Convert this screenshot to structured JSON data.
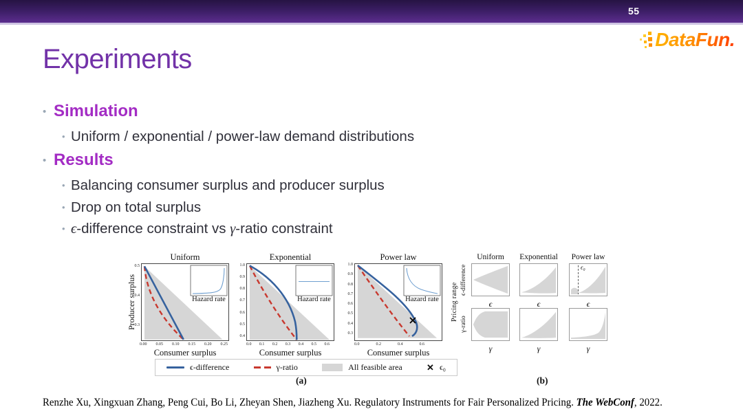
{
  "slide": {
    "page_number": "55",
    "title": "Experiments",
    "logo": {
      "text": "DataFun."
    },
    "citation": {
      "pre": "Renzhe Xu, Xingxuan Zhang, Peng Cui, Bo Li, Zheyan Shen, Jiazheng Xu. Regulatory Instruments for Fair Personalized Pricing. ",
      "emph": "The WebConf",
      "post": ", 2022."
    },
    "colors": {
      "bar_purple": "#3a1d63",
      "title_purple": "#7232a8",
      "header_purple": "#a32cc4",
      "line_blue": "#36629e",
      "line_red": "#c8392f",
      "feasible_gray": "#d6d6d6"
    }
  },
  "bullets": {
    "simulation": {
      "label": "Simulation",
      "sub": "Uniform / exponential / power-law demand distributions"
    },
    "results": {
      "label": "Results",
      "sub1": "Balancing consumer surplus and producer surplus",
      "sub2": "Drop on total surplus",
      "sub3": {
        "eps": "ϵ",
        "mid": "-difference constraint vs ",
        "gamma": "γ",
        "end": "-ratio constraint"
      }
    }
  },
  "figure": {
    "caption_a": "(a)",
    "caption_b": "(b)",
    "ylabel_a": "Producer surplus",
    "xlabel_a": "Consumer surplus",
    "inset_label": "Hazard rate",
    "panels_a": [
      {
        "title": "Uniform",
        "x_ticks": [
          "0.00",
          "0.05",
          "0.10",
          "0.15",
          "0.20",
          "0.25"
        ],
        "y_ticks": [
          "0.5",
          "0.4",
          "0.3"
        ]
      },
      {
        "title": "Exponential",
        "x_ticks": [
          "0.0",
          "0.1",
          "0.2",
          "0.3",
          "0.4",
          "0.5",
          "0.6"
        ],
        "y_ticks": [
          "1.0",
          "0.9",
          "0.8",
          "0.7",
          "0.6",
          "0.5",
          "0.4"
        ]
      },
      {
        "title": "Power law",
        "x_ticks": [
          "0.0",
          "0.2",
          "0.4",
          "0.6"
        ],
        "y_ticks": [
          "1.0",
          "0.9",
          "0.8",
          "0.7",
          "0.6",
          "0.5",
          "0.4",
          "0.3"
        ]
      }
    ],
    "legend": {
      "eps_diff": "ϵ-difference",
      "gamma_ratio": "γ-ratio",
      "feasible": "All feasible area",
      "eps0": "ϵ₀"
    },
    "panels_b": {
      "outer_row_label": "Pricing range",
      "row1_label": "ϵ-difference",
      "row2_label": "γ-ratio",
      "col_titles": [
        "Uniform",
        "Exponential",
        "Power law"
      ],
      "x_label_row1": "ϵ",
      "x_label_row2": "γ",
      "eps0": "ϵ₀"
    }
  },
  "chart_data": [
    {
      "type": "line",
      "title": "Uniform",
      "xlabel": "Consumer surplus",
      "ylabel": "Producer surplus",
      "xlim": [
        0,
        0.26
      ],
      "ylim": [
        0.24,
        0.51
      ],
      "x_ticks": [
        0.0,
        0.05,
        0.1,
        0.15,
        0.2,
        0.25
      ],
      "y_ticks": [
        0.3,
        0.4,
        0.5
      ],
      "feasible_area_polygon": [
        [
          0,
          0.5
        ],
        [
          0,
          0.25
        ],
        [
          0.25,
          0.25
        ]
      ],
      "series": [
        {
          "name": "ϵ-difference",
          "style": "solid",
          "color": "#36629e",
          "points": [
            [
              0,
              0.5
            ],
            [
              0.06,
              0.38
            ],
            [
              0.125,
              0.25
            ]
          ]
        },
        {
          "name": "γ-ratio",
          "style": "dashed",
          "color": "#c8392f",
          "points": [
            [
              0,
              0.5
            ],
            [
              0.03,
              0.4
            ],
            [
              0.07,
              0.32
            ],
            [
              0.125,
              0.25
            ]
          ]
        }
      ],
      "inset": {
        "label": "Hazard rate",
        "shape": "near-constant then sharply increasing at right"
      }
    },
    {
      "type": "line",
      "title": "Exponential",
      "xlabel": "Consumer surplus",
      "ylabel": "Producer surplus",
      "xlim": [
        0,
        0.65
      ],
      "ylim": [
        0.36,
        1.02
      ],
      "x_ticks": [
        0.0,
        0.1,
        0.2,
        0.3,
        0.4,
        0.5,
        0.6
      ],
      "y_ticks": [
        0.4,
        0.5,
        0.6,
        0.7,
        0.8,
        0.9,
        1.0
      ],
      "feasible_area_polygon": [
        [
          0,
          1.0
        ],
        [
          0,
          0.37
        ],
        [
          0.63,
          0.37
        ]
      ],
      "series": [
        {
          "name": "ϵ-difference",
          "style": "solid",
          "color": "#36629e",
          "points": [
            [
              0,
              1.0
            ],
            [
              0.2,
              0.82
            ],
            [
              0.3,
              0.7
            ],
            [
              0.36,
              0.5
            ],
            [
              0.37,
              0.37
            ]
          ]
        },
        {
          "name": "γ-ratio",
          "style": "dashed",
          "color": "#c8392f",
          "points": [
            [
              0,
              1.0
            ],
            [
              0.17,
              0.7
            ],
            [
              0.28,
              0.52
            ],
            [
              0.37,
              0.37
            ]
          ]
        }
      ],
      "inset": {
        "label": "Hazard rate",
        "shape": "constant (flat line)"
      }
    },
    {
      "type": "line",
      "title": "Power law",
      "xlabel": "Consumer surplus",
      "ylabel": "Producer surplus",
      "xlim": [
        0,
        0.78
      ],
      "ylim": [
        0.22,
        1.02
      ],
      "x_ticks": [
        0.0,
        0.2,
        0.4,
        0.6
      ],
      "y_ticks": [
        0.3,
        0.4,
        0.5,
        0.6,
        0.7,
        0.8,
        0.9,
        1.0
      ],
      "feasible_area_polygon": [
        [
          0,
          1.0
        ],
        [
          0,
          0.25
        ],
        [
          0.75,
          0.25
        ]
      ],
      "series": [
        {
          "name": "ϵ-difference",
          "style": "solid",
          "color": "#36629e",
          "points": [
            [
              0,
              1.0
            ],
            [
              0.3,
              0.74
            ],
            [
              0.5,
              0.5
            ],
            [
              0.56,
              0.37
            ],
            [
              0.52,
              0.29
            ],
            [
              0.5,
              0.27
            ]
          ]
        },
        {
          "name": "γ-ratio",
          "style": "dashed",
          "color": "#c8392f",
          "points": [
            [
              0,
              1.0
            ],
            [
              0.25,
              0.62
            ],
            [
              0.4,
              0.42
            ],
            [
              0.5,
              0.27
            ]
          ]
        }
      ],
      "markers": [
        {
          "name": "ϵ₀",
          "symbol": "x",
          "point": [
            0.52,
            0.43
          ]
        }
      ],
      "inset": {
        "label": "Hazard rate",
        "shape": "convex decreasing curve"
      }
    },
    {
      "type": "area",
      "title": "Pricing range under constraints (panel b)",
      "rows": [
        "ϵ-difference (x axis: ϵ)",
        "γ-ratio (x axis: γ)"
      ],
      "cols": [
        "Uniform",
        "Exponential",
        "Power law"
      ],
      "cells": [
        "gray wedge opening rightward from a mid-left vertex to near-full height",
        "gray region widening from bottom-left toward upper right",
        "gray region widening toward upper right, small lobe left of vertical dashed ϵ₀ line",
        "gray trumpet pinched at mid-left opening to full panel height",
        "gray region widening from bottom-left toward upper right",
        "thin gray band along bottom rising sharply to top-right corner"
      ],
      "annotations": [
        "ϵ₀ dashed vertical line in Power-law / ϵ-difference cell"
      ]
    }
  ]
}
